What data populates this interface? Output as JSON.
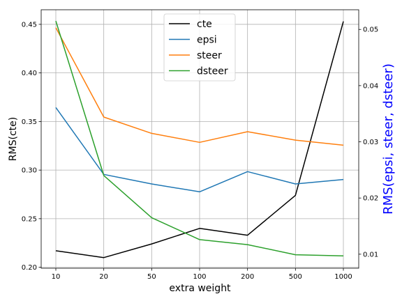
{
  "chart_data": {
    "type": "line",
    "categories": [
      "10",
      "20",
      "50",
      "100",
      "200",
      "500",
      "1000"
    ],
    "xlabel": "extra weight",
    "ylabel_left": "RMS(cte)",
    "ylabel_right": "RMS(epsi, steer, dsteer)",
    "ylabel_right_color": "#0000ff",
    "grid": true,
    "legend_position": "upper-center",
    "left_axis": {
      "ylim": [
        0.199,
        0.465
      ],
      "ticks": [
        0.2,
        0.25,
        0.3,
        0.35,
        0.4,
        0.45
      ],
      "tick_labels": [
        "0.20",
        "0.25",
        "0.30",
        "0.35",
        "0.40",
        "0.45"
      ]
    },
    "right_axis": {
      "ylim": [
        0.0075,
        0.0535
      ],
      "ticks": [
        0.01,
        0.02,
        0.03,
        0.04,
        0.05
      ],
      "tick_labels": [
        "0.01",
        "0.02",
        "0.03",
        "0.04",
        "0.05"
      ]
    },
    "series": [
      {
        "name": "cte",
        "axis": "left",
        "color": "#000000",
        "values": [
          0.217,
          0.21,
          0.224,
          0.24,
          0.233,
          0.274,
          0.453
        ]
      },
      {
        "name": "epsi",
        "axis": "right",
        "color": "#1f77b4",
        "values": [
          0.0361,
          0.0242,
          0.0225,
          0.0211,
          0.0247,
          0.0225,
          0.0233
        ]
      },
      {
        "name": "steer",
        "axis": "right",
        "color": "#ff7f0e",
        "values": [
          0.0503,
          0.0344,
          0.0315,
          0.0299,
          0.0318,
          0.0303,
          0.0294
        ]
      },
      {
        "name": "dsteer",
        "axis": "right",
        "color": "#2ca02c",
        "values": [
          0.0515,
          0.024,
          0.0165,
          0.0126,
          0.0117,
          0.0099,
          0.0097
        ]
      }
    ]
  }
}
